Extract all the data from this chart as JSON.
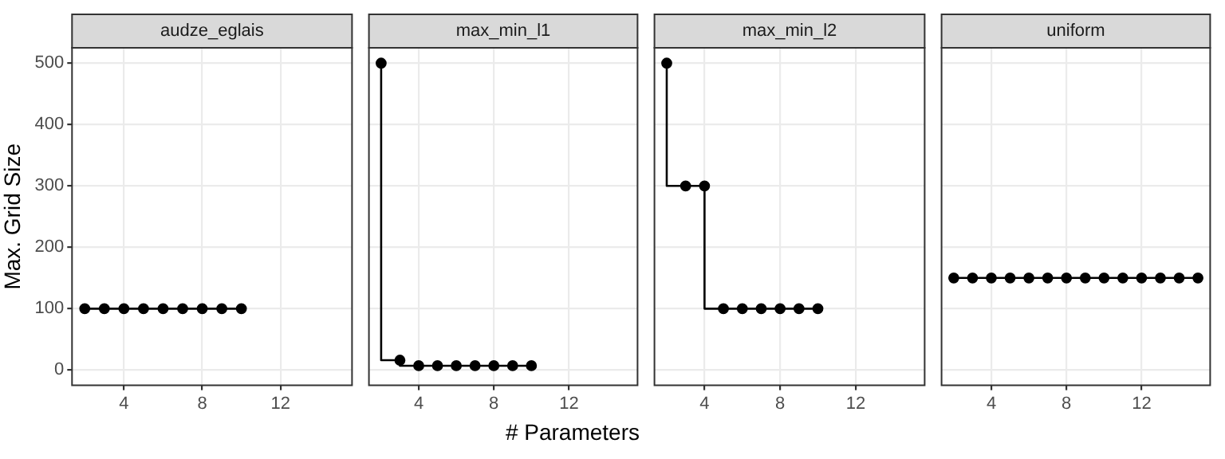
{
  "chart_data": [
    {
      "type": "step",
      "title": "audze_eglais",
      "ylabel": "Max. Grid Size",
      "x": [
        2,
        3,
        4,
        5,
        6,
        7,
        8,
        9,
        10
      ],
      "series": [
        {
          "color": "#000000",
          "values": [
            100,
            100,
            100,
            100,
            100,
            100,
            100,
            100,
            100
          ]
        }
      ],
      "xlim": [
        1.35,
        15.65
      ],
      "xticks": [
        4,
        8,
        12
      ],
      "ylim": [
        -25,
        525
      ],
      "yticks": [
        0,
        100,
        200,
        300,
        400,
        500
      ],
      "grid": true,
      "marker": "circle"
    },
    {
      "type": "step",
      "title": "max_min_l1",
      "xlabel": "# Parameters",
      "x": [
        2,
        3,
        4,
        5,
        6,
        7,
        8,
        9,
        10
      ],
      "series": [
        {
          "color": "#000000",
          "values": [
            500,
            16,
            7,
            7,
            7,
            7,
            7,
            7,
            7
          ]
        }
      ],
      "xlim": [
        1.35,
        15.65
      ],
      "xticks": [
        4,
        8,
        12
      ],
      "ylim": [
        -25,
        525
      ],
      "yticks": [
        0,
        100,
        200,
        300,
        400,
        500
      ],
      "grid": true,
      "marker": "circle",
      "tick_labels": "x"
    },
    {
      "type": "step",
      "title": "max_min_l2",
      "x": [
        2,
        3,
        4,
        5,
        6,
        7,
        8,
        9,
        10
      ],
      "series": [
        {
          "color": "#000000",
          "values": [
            500,
            300,
            300,
            100,
            100,
            100,
            100,
            100,
            100
          ]
        }
      ],
      "xlim": [
        1.35,
        15.65
      ],
      "xticks": [
        4,
        8,
        12
      ],
      "ylim": [
        -25,
        525
      ],
      "yticks": [
        0,
        100,
        200,
        300,
        400,
        500
      ],
      "grid": true,
      "marker": "circle",
      "tick_labels": "x"
    },
    {
      "type": "step",
      "title": "uniform",
      "x": [
        2,
        3,
        4,
        5,
        6,
        7,
        8,
        9,
        10,
        11,
        12,
        13,
        14,
        15
      ],
      "series": [
        {
          "color": "#000000",
          "values": [
            150,
            150,
            150,
            150,
            150,
            150,
            150,
            150,
            150,
            150,
            150,
            150,
            150,
            150
          ]
        }
      ],
      "xlim": [
        1.35,
        15.65
      ],
      "xticks": [
        4,
        8,
        12
      ],
      "ylim": [
        -25,
        525
      ],
      "yticks": [
        0,
        100,
        200,
        300,
        400,
        500
      ],
      "grid": true,
      "marker": "circle",
      "tick_labels": "x"
    }
  ]
}
